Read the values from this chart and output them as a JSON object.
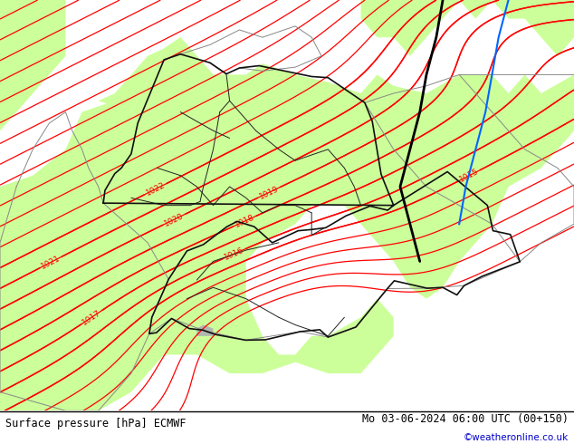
{
  "title_left": "Surface pressure [hPa] ECMWF",
  "title_right": "Mo 03-06-2024 06:00 UTC (00+150)",
  "credit": "©weatheronline.co.uk",
  "bg_color_land": "#ccff99",
  "bg_color_sea": "#c8c8c8",
  "contour_color_red": "#ff0000",
  "contour_color_black": "#000000",
  "contour_color_blue": "#0066ff",
  "text_color_left": "#000000",
  "text_color_right": "#000000",
  "credit_color": "#0000cc",
  "figsize": [
    6.34,
    4.9
  ],
  "dpi": 100,
  "lon_min": 3.0,
  "lon_max": 20.5,
  "lat_min": 45.5,
  "lat_max": 56.5,
  "bottom_bar_height": 0.075,
  "label_fontsize": 6.5,
  "isobar_step": 1,
  "p_base": 1016.0,
  "label_levels": [
    1015,
    1016,
    1017,
    1018,
    1019,
    1020,
    1021,
    1022
  ]
}
